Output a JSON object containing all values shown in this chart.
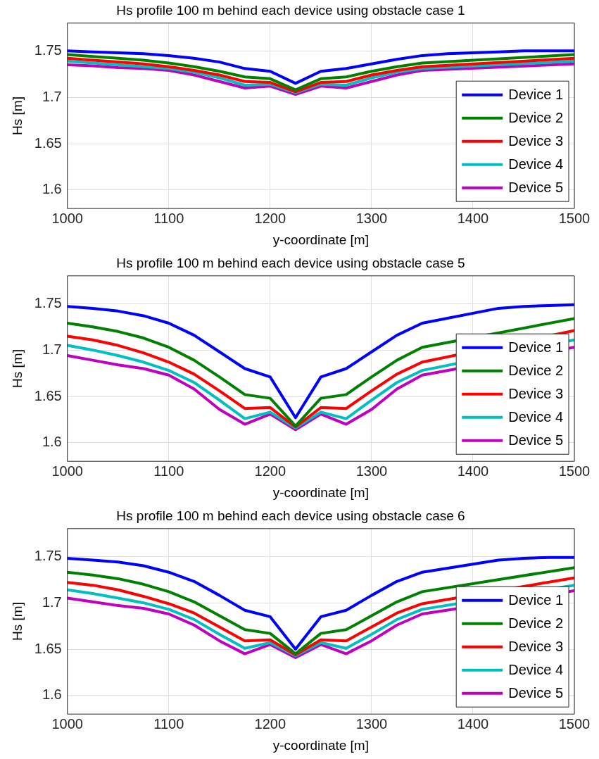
{
  "chart_data": [
    {
      "type": "line",
      "title": "Hs profile 100 m behind each device using obstacle case 1",
      "xlabel": "y-coordinate [m]",
      "ylabel": "Hs [m]",
      "x": [
        1000,
        1025,
        1050,
        1075,
        1100,
        1125,
        1150,
        1175,
        1200,
        1225,
        1250,
        1275,
        1300,
        1325,
        1350,
        1375,
        1400,
        1425,
        1450,
        1475,
        1500
      ],
      "xlim": [
        1000,
        1500
      ],
      "xticks": [
        1000,
        1100,
        1200,
        1300,
        1400,
        1500
      ],
      "ylim": [
        1.58,
        1.78
      ],
      "yticks": [
        1.6,
        1.65,
        1.7,
        1.75
      ],
      "grid": true,
      "legend": "bottom right",
      "marker": "none",
      "line_style": "solid",
      "series": [
        {
          "name": "Device 1",
          "color": "#0000ff",
          "values": [
            1.75,
            1.749,
            1.748,
            1.747,
            1.745,
            1.742,
            1.738,
            1.731,
            1.728,
            1.715,
            1.728,
            1.731,
            1.736,
            1.741,
            1.745,
            1.747,
            1.748,
            1.749,
            1.75,
            1.75,
            1.75
          ]
        },
        {
          "name": "Device 2",
          "color": "#008000",
          "values": [
            1.746,
            1.744,
            1.742,
            1.74,
            1.737,
            1.733,
            1.728,
            1.722,
            1.72,
            1.708,
            1.72,
            1.722,
            1.728,
            1.733,
            1.737,
            null,
            null,
            null,
            null,
            null,
            1.746
          ]
        },
        {
          "name": "Device 3",
          "color": "#ff0000",
          "values": [
            1.742,
            1.74,
            1.738,
            1.736,
            1.733,
            1.729,
            1.724,
            1.717,
            1.716,
            1.706,
            1.716,
            1.717,
            1.724,
            1.729,
            1.733,
            null,
            null,
            null,
            null,
            null,
            1.742
          ]
        },
        {
          "name": "Device 4",
          "color": "#00bfbf",
          "values": [
            1.739,
            1.737,
            1.735,
            1.733,
            1.731,
            1.727,
            1.721,
            1.713,
            1.714,
            1.705,
            1.714,
            1.713,
            1.721,
            1.727,
            1.731,
            null,
            null,
            null,
            null,
            null,
            1.739
          ]
        },
        {
          "name": "Device 5",
          "color": "#bf00bf",
          "values": [
            1.735,
            1.734,
            1.732,
            1.731,
            1.729,
            1.724,
            1.717,
            1.71,
            1.712,
            1.703,
            1.712,
            1.71,
            1.717,
            1.724,
            1.729,
            null,
            null,
            null,
            null,
            null,
            1.736
          ]
        }
      ]
    },
    {
      "type": "line",
      "title": "Hs profile 100 m behind each device using obstacle case 5",
      "xlabel": "y-coordinate [m]",
      "ylabel": "Hs [m]",
      "x": [
        1000,
        1025,
        1050,
        1075,
        1100,
        1125,
        1150,
        1175,
        1200,
        1225,
        1250,
        1275,
        1300,
        1325,
        1350,
        1375,
        1400,
        1425,
        1450,
        1475,
        1500
      ],
      "xlim": [
        1000,
        1500
      ],
      "xticks": [
        1000,
        1100,
        1200,
        1300,
        1400,
        1500
      ],
      "ylim": [
        1.58,
        1.78
      ],
      "yticks": [
        1.6,
        1.65,
        1.7,
        1.75
      ],
      "grid": true,
      "legend": "bottom right",
      "marker": "none",
      "line_style": "solid",
      "series": [
        {
          "name": "Device 1",
          "color": "#0000ff",
          "values": [
            1.747,
            1.745,
            1.742,
            1.737,
            1.729,
            1.716,
            1.698,
            1.68,
            1.671,
            1.627,
            1.671,
            1.68,
            1.698,
            1.716,
            1.729,
            null,
            null,
            1.745,
            1.747,
            1.748,
            1.749
          ]
        },
        {
          "name": "Device 2",
          "color": "#008000",
          "values": [
            1.729,
            1.725,
            1.72,
            1.713,
            1.703,
            1.689,
            1.671,
            1.652,
            1.648,
            1.618,
            1.648,
            1.652,
            1.671,
            1.689,
            1.703,
            null,
            null,
            null,
            null,
            null,
            1.734
          ]
        },
        {
          "name": "Device 3",
          "color": "#ff0000",
          "values": [
            1.715,
            1.711,
            1.705,
            1.697,
            1.687,
            1.674,
            1.656,
            1.637,
            1.638,
            1.617,
            1.638,
            1.637,
            1.656,
            1.674,
            1.687,
            null,
            null,
            null,
            null,
            null,
            1.721
          ]
        },
        {
          "name": "Device 4",
          "color": "#00bfbf",
          "values": [
            1.705,
            1.7,
            1.694,
            1.687,
            1.678,
            1.665,
            1.646,
            1.626,
            1.633,
            1.616,
            1.633,
            1.626,
            1.646,
            1.665,
            1.678,
            null,
            null,
            null,
            null,
            null,
            1.711
          ]
        },
        {
          "name": "Device 5",
          "color": "#bf00bf",
          "values": [
            1.694,
            1.689,
            1.684,
            1.68,
            1.673,
            1.658,
            1.636,
            1.62,
            1.631,
            1.614,
            1.631,
            1.62,
            1.636,
            1.658,
            1.673,
            null,
            null,
            null,
            null,
            null,
            1.703
          ]
        }
      ]
    },
    {
      "type": "line",
      "title": "Hs profile 100 m behind each device using obstacle case 6",
      "xlabel": "y-coordinate [m]",
      "ylabel": "Hs [m]",
      "x": [
        1000,
        1025,
        1050,
        1075,
        1100,
        1125,
        1150,
        1175,
        1200,
        1225,
        1250,
        1275,
        1300,
        1325,
        1350,
        1375,
        1400,
        1425,
        1450,
        1475,
        1500
      ],
      "xlim": [
        1000,
        1500
      ],
      "xticks": [
        1000,
        1100,
        1200,
        1300,
        1400,
        1500
      ],
      "ylim": [
        1.58,
        1.78
      ],
      "yticks": [
        1.6,
        1.65,
        1.7,
        1.75
      ],
      "grid": true,
      "legend": "bottom right",
      "marker": "none",
      "line_style": "solid",
      "series": [
        {
          "name": "Device 1",
          "color": "#0000ff",
          "values": [
            1.748,
            1.746,
            1.744,
            1.74,
            1.733,
            1.723,
            1.708,
            1.692,
            1.685,
            1.65,
            1.685,
            1.692,
            1.708,
            1.723,
            1.733,
            null,
            null,
            1.746,
            1.748,
            1.749,
            1.749
          ]
        },
        {
          "name": "Device 2",
          "color": "#008000",
          "values": [
            1.733,
            1.73,
            1.726,
            1.72,
            1.712,
            1.701,
            1.686,
            1.671,
            1.667,
            1.645,
            1.667,
            1.671,
            1.686,
            1.701,
            1.712,
            null,
            null,
            null,
            null,
            null,
            1.738
          ]
        },
        {
          "name": "Device 3",
          "color": "#ff0000",
          "values": [
            1.722,
            1.719,
            1.714,
            1.707,
            1.699,
            1.689,
            1.674,
            1.659,
            1.66,
            1.644,
            1.66,
            1.659,
            1.674,
            1.689,
            1.699,
            null,
            null,
            null,
            null,
            null,
            1.727
          ]
        },
        {
          "name": "Device 4",
          "color": "#00bfbf",
          "values": [
            1.714,
            1.71,
            1.705,
            1.7,
            1.693,
            1.682,
            1.666,
            1.651,
            1.657,
            1.643,
            1.657,
            1.651,
            1.666,
            1.682,
            1.693,
            null,
            null,
            null,
            null,
            null,
            1.719
          ]
        },
        {
          "name": "Device 5",
          "color": "#bf00bf",
          "values": [
            1.705,
            1.701,
            1.697,
            1.694,
            1.688,
            1.676,
            1.659,
            1.645,
            1.655,
            1.641,
            1.655,
            1.645,
            1.659,
            1.676,
            1.688,
            null,
            null,
            null,
            null,
            null,
            1.713
          ]
        }
      ]
    }
  ]
}
